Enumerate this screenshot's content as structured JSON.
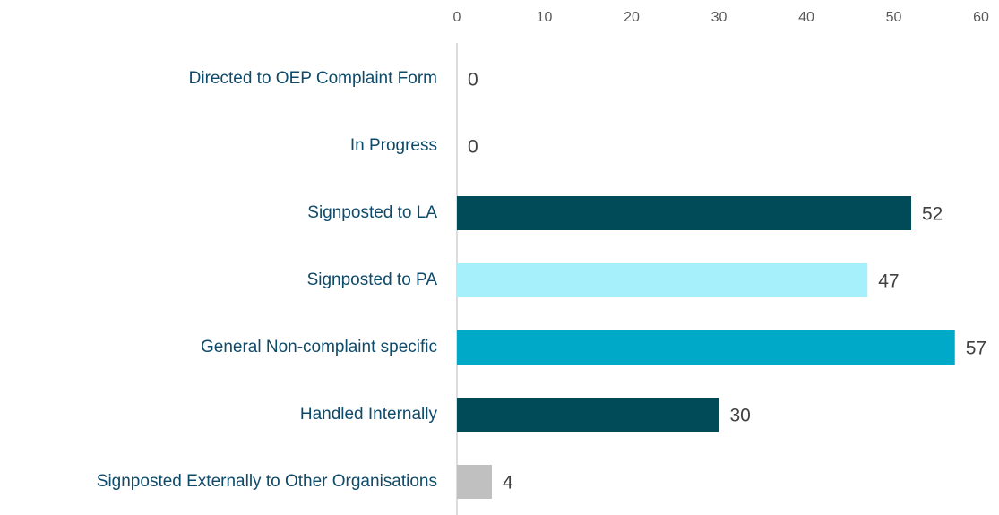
{
  "chart_data": {
    "type": "barh",
    "categories": [
      "Directed to OEP Complaint Form",
      "In Progress",
      "Signposted to LA",
      "Signposted to PA",
      "General Non-complaint specific",
      "Handled Internally",
      "Signposted Externally to Other Organisations"
    ],
    "values": [
      0,
      0,
      52,
      47,
      57,
      30,
      4
    ],
    "colors": [
      null,
      null,
      "#004b57",
      "#a6f0fc",
      "#00a9c7",
      "#004b57",
      "#c0c0c0"
    ],
    "xlim": [
      0,
      60
    ],
    "xticks": [
      0,
      10,
      20,
      30,
      40,
      50,
      60
    ],
    "grid": false
  }
}
